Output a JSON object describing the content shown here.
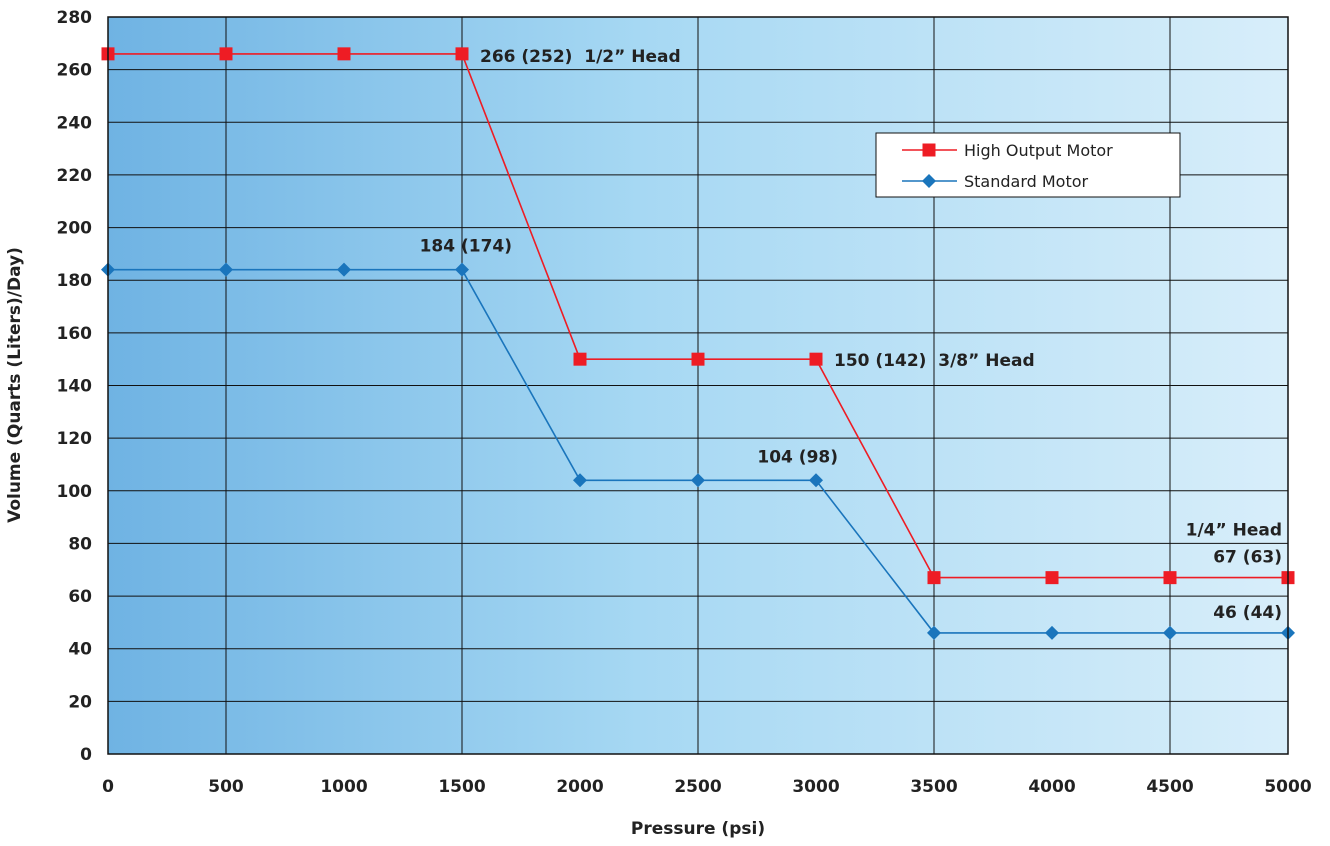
{
  "chart_data": {
    "type": "line",
    "xlabel": "Pressure (psi)",
    "ylabel": "Volume (Quarts (Liters)/Day)",
    "xlim": [
      0,
      5000
    ],
    "ylim": [
      0,
      280
    ],
    "x_ticks": [
      "0",
      "500",
      "1000",
      "1500",
      "2000",
      "2500",
      "3000",
      "3500",
      "4000",
      "4500",
      "5000"
    ],
    "y_ticks": [
      "0",
      "20",
      "40",
      "60",
      "80",
      "100",
      "120",
      "140",
      "160",
      "180",
      "200",
      "220",
      "240",
      "260",
      "280"
    ],
    "grid": true,
    "legend_position": "top-right",
    "series": [
      {
        "name": "High Output Motor",
        "color": "#ee1c24",
        "marker": "square",
        "x": [
          0,
          500,
          1000,
          1500,
          2000,
          2500,
          3000,
          3500,
          4000,
          4500,
          5000
        ],
        "y": [
          266,
          266,
          266,
          266,
          150,
          150,
          150,
          67,
          67,
          67,
          67
        ]
      },
      {
        "name": "Standard Motor",
        "color": "#1a75bc",
        "marker": "diamond",
        "x": [
          0,
          500,
          1000,
          1500,
          2000,
          2500,
          3000,
          3500,
          4000,
          4500,
          5000
        ],
        "y": [
          184,
          184,
          184,
          184,
          104,
          104,
          104,
          46,
          46,
          46,
          46
        ]
      }
    ],
    "annotations": [
      {
        "text": "266 (252)  1/2” Head",
        "x": 1500,
        "y": 266
      },
      {
        "text": "184 (174)",
        "x": 1500,
        "y": 184
      },
      {
        "text": "150 (142)  3/8” Head",
        "x": 3000,
        "y": 150
      },
      {
        "text": "104 (98)",
        "x": 3000,
        "y": 104
      },
      {
        "text": "1/4” Head",
        "x": 5000,
        "y": 67
      },
      {
        "text": "67 (63)",
        "x": 5000,
        "y": 67
      },
      {
        "text": "46 (44)",
        "x": 5000,
        "y": 46
      }
    ],
    "colors": {
      "bg_left": "#6fb3e3",
      "bg_right": "#d8eefa",
      "grid": "#111111"
    }
  }
}
